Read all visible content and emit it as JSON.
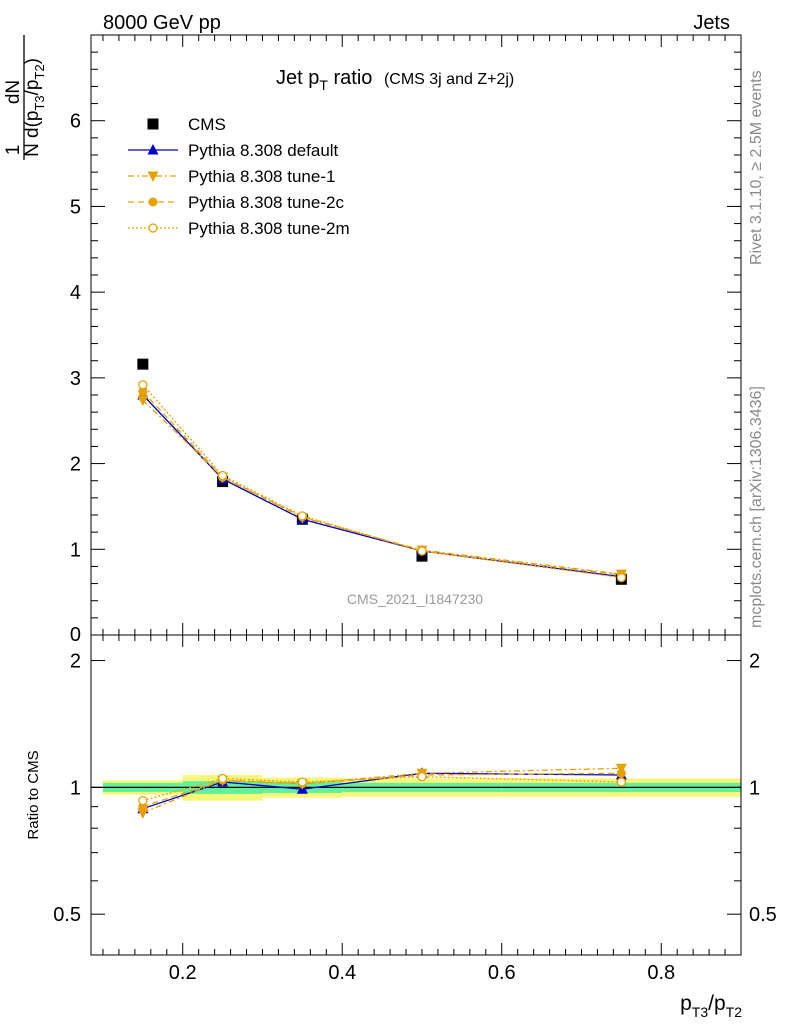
{
  "header": {
    "left": "8000 GeV pp",
    "right": "Jets"
  },
  "side_labels": {
    "rivet": "Rivet 3.1.10, ≥ 2.5M events",
    "mcplots": "mcplots.cern.ch [arXiv:1306.3436]"
  },
  "watermark": "CMS_2021_I1847230",
  "colors": {
    "data": "#000000",
    "default": "#0000cc",
    "tunes": "#e6a000",
    "band_inner": "#66ee99",
    "band_outer": "#f7f77a"
  },
  "chart_data": [
    {
      "type": "line",
      "panel": "main",
      "title_main": "Jet p",
      "title_sub": "T",
      "title_rest": " ratio",
      "title_small": "(CMS 3j and Z+2j)",
      "ylabel_frac_top": "1",
      "ylabel_frac_bottom": "N",
      "ylabel_top": "dN",
      "ylabel_bottom": "d(p",
      "ylabel_sub1": "T3",
      "ylabel_mid": "/p",
      "ylabel_sub2": "T2",
      "ylabel_end": ")",
      "xlim": [
        0.085,
        0.9
      ],
      "ylim": [
        0,
        7
      ],
      "yticks": [
        "1",
        "2",
        "3",
        "4",
        "5",
        "6"
      ],
      "ytick_values": [
        1,
        2,
        3,
        4,
        5,
        6
      ],
      "y0_label": "0",
      "legend_position": "top-left",
      "x": [
        0.15,
        0.25,
        0.35,
        0.5,
        0.75
      ],
      "series": [
        {
          "name": "CMS",
          "marker": "square",
          "values": [
            3.16,
            1.79,
            1.35,
            0.92,
            0.65
          ]
        },
        {
          "name": "Pythia 8.308 default",
          "marker": "triangle-up",
          "values": [
            2.8,
            1.82,
            1.35,
            0.98,
            0.68
          ]
        },
        {
          "name": "Pythia 8.308 tune-1",
          "marker": "triangle-down",
          "values": [
            2.74,
            1.84,
            1.37,
            0.99,
            0.71
          ]
        },
        {
          "name": "Pythia 8.308 tune-2c",
          "marker": "circle",
          "values": [
            2.84,
            1.84,
            1.38,
            0.98,
            0.7
          ]
        },
        {
          "name": "Pythia 8.308 tune-2m",
          "marker": "circle-open",
          "values": [
            2.92,
            1.86,
            1.39,
            0.98,
            0.67
          ]
        }
      ]
    },
    {
      "type": "line",
      "panel": "ratio",
      "ylabel": "Ratio to CMS",
      "xlabel_main": "p",
      "xlabel_sub1": "T3",
      "xlabel_mid": "/p",
      "xlabel_sub2": "T2",
      "ylog": true,
      "ylim": [
        0.4,
        2.3
      ],
      "yticks": [
        "0.5",
        "1",
        "2"
      ],
      "ytick_values": [
        0.5,
        1,
        2
      ],
      "xticks": [
        "0.2",
        "0.4",
        "0.6",
        "0.8"
      ],
      "xtick_values": [
        0.2,
        0.4,
        0.6,
        0.8
      ],
      "x": [
        0.15,
        0.25,
        0.35,
        0.5,
        0.75
      ],
      "bins": [
        [
          0.1,
          0.2
        ],
        [
          0.2,
          0.3
        ],
        [
          0.3,
          0.4
        ],
        [
          0.4,
          0.6
        ],
        [
          0.6,
          0.9
        ]
      ],
      "band_inner": [
        0.025,
        0.035,
        0.03,
        0.025,
        0.025
      ],
      "band_outer": [
        0.04,
        0.07,
        0.055,
        0.05,
        0.05
      ],
      "series": [
        {
          "name": "Pythia 8.308 default",
          "values": [
            0.89,
            1.03,
            0.99,
            1.08,
            1.07
          ]
        },
        {
          "name": "Pythia 8.308 tune-1",
          "values": [
            0.87,
            1.04,
            1.02,
            1.08,
            1.11
          ]
        },
        {
          "name": "Pythia 8.308 tune-2c",
          "values": [
            0.9,
            1.04,
            1.02,
            1.07,
            1.08
          ]
        },
        {
          "name": "Pythia 8.308 tune-2m",
          "values": [
            0.93,
            1.05,
            1.03,
            1.06,
            1.03
          ]
        }
      ]
    }
  ]
}
